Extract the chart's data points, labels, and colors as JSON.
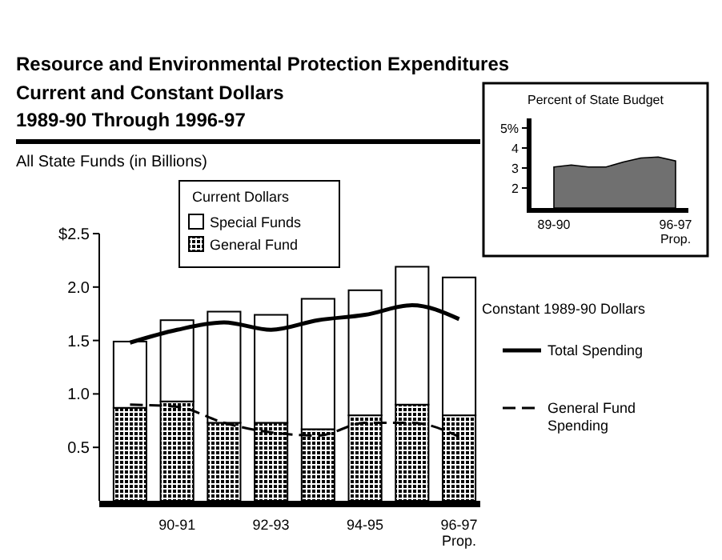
{
  "chart_data": [
    {
      "type": "bar",
      "stacked": true,
      "title": "Resource and Environmental Protection Expenditures",
      "subtitle": "Current and Constant Dollars\n1989-90 Through 1996-97",
      "annotations": [
        "All State Funds (in Billions)",
        "Constant 1989-90 Dollars"
      ],
      "legend_title": "Current Dollars",
      "legend": "top",
      "categories": [
        null,
        "90-91",
        null,
        "92-93",
        null,
        "94-95",
        null,
        "96-97 Prop."
      ],
      "ylim": [
        0,
        2.5
      ],
      "yticks": [
        {
          "value": 0.5,
          "label": "0.5"
        },
        {
          "value": 1,
          "label": "1.0"
        },
        {
          "value": 1.5,
          "label": "1.5"
        },
        {
          "value": 2,
          "label": "2.0"
        },
        {
          "value": 2.5,
          "label": "$2.5"
        }
      ],
      "series": [
        {
          "name": "General Fund",
          "color": "#000000",
          "values": [
            0.87,
            0.93,
            0.73,
            0.73,
            0.67,
            0.8,
            0.9,
            0.8
          ]
        },
        {
          "name": "Special Funds",
          "color": "#ffffff",
          "values": [
            0.62,
            0.76,
            1.04,
            1.01,
            1.22,
            1.17,
            1.29,
            1.29
          ]
        },
        {
          "name": "Total Spending",
          "type": "line",
          "line_style": "solid",
          "color": "#000000",
          "values": [
            1.48,
            1.6,
            1.67,
            1.6,
            1.69,
            1.74,
            1.83,
            1.7
          ]
        },
        {
          "name": "General Fund Spending",
          "type": "line",
          "line_style": "dashed",
          "color": "#000000",
          "values": [
            0.9,
            0.88,
            0.73,
            0.64,
            0.61,
            0.73,
            0.73,
            0.6
          ]
        }
      ]
    },
    {
      "type": "area",
      "title": "Percent of State Budget",
      "categories": [
        "89-90",
        null,
        null,
        null,
        null,
        null,
        null,
        "96-97 Prop."
      ],
      "ylim": [
        1,
        5
      ],
      "yticks": [
        2,
        3,
        4,
        {
          "value": 5,
          "label": "5%"
        }
      ],
      "series": [
        {
          "color": "#707070",
          "values": [
            3.05,
            3.15,
            3.05,
            3.05,
            3.3,
            3.5,
            3.55,
            3.35
          ]
        }
      ]
    }
  ]
}
